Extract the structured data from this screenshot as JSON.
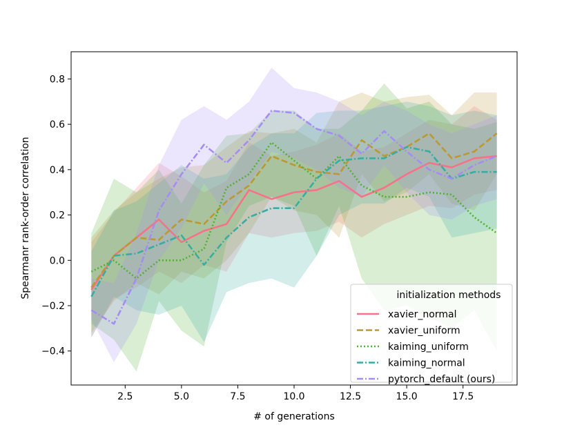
{
  "chart_data": {
    "type": "line",
    "title": "",
    "xlabel": "# of generations",
    "ylabel": "Spearmanr rank-order correlation",
    "xlim": [
      0.1,
      19.9
    ],
    "ylim": [
      -0.55,
      0.92
    ],
    "xticks": [
      2.5,
      5.0,
      7.5,
      10.0,
      12.5,
      15.0,
      17.5
    ],
    "xtick_labels": [
      "2.5",
      "5.0",
      "7.5",
      "10.0",
      "12.5",
      "15.0",
      "17.5"
    ],
    "yticks": [
      -0.4,
      -0.2,
      0.0,
      0.2,
      0.4,
      0.6,
      0.8
    ],
    "ytick_labels": [
      "−0.4",
      "−0.2",
      "0.0",
      "0.2",
      "0.4",
      "0.6",
      "0.8"
    ],
    "grid": false,
    "legend_title": "initialization methods",
    "legend_position": "lower-right",
    "x": [
      1,
      2,
      3,
      4,
      5,
      6,
      7,
      8,
      9,
      10,
      11,
      12,
      13,
      14,
      15,
      16,
      17,
      18,
      19
    ],
    "series": [
      {
        "name": "xavier_normal",
        "color": "#f77189",
        "dash": "solid",
        "values": [
          -0.13,
          0.02,
          0.1,
          0.18,
          0.08,
          0.13,
          0.16,
          0.31,
          0.27,
          0.3,
          0.31,
          0.35,
          0.28,
          0.32,
          0.38,
          0.43,
          0.41,
          0.45,
          0.46
        ],
        "lower": [
          -0.34,
          -0.17,
          -0.12,
          -0.05,
          -0.1,
          -0.02,
          -0.05,
          0.12,
          0.1,
          0.12,
          0.13,
          0.17,
          0.1,
          0.16,
          0.2,
          0.24,
          0.23,
          0.29,
          0.31
        ],
        "upper": [
          0.08,
          0.21,
          0.32,
          0.43,
          0.37,
          0.3,
          0.35,
          0.52,
          0.46,
          0.48,
          0.51,
          0.56,
          0.48,
          0.5,
          0.56,
          0.62,
          0.6,
          0.68,
          0.62
        ]
      },
      {
        "name": "xavier_uniform",
        "color": "#bb9832",
        "dash": "dashed",
        "values": [
          -0.12,
          0.02,
          0.1,
          0.09,
          0.18,
          0.16,
          0.26,
          0.33,
          0.46,
          0.42,
          0.39,
          0.38,
          0.53,
          0.46,
          0.5,
          0.56,
          0.45,
          0.48,
          0.56
        ],
        "lower": [
          -0.32,
          -0.18,
          -0.1,
          -0.15,
          -0.05,
          -0.08,
          0.0,
          0.12,
          0.28,
          0.22,
          0.2,
          0.1,
          0.38,
          0.26,
          0.3,
          0.38,
          0.25,
          0.22,
          0.38
        ],
        "upper": [
          0.1,
          0.22,
          0.3,
          0.36,
          0.41,
          0.42,
          0.5,
          0.57,
          0.56,
          0.58,
          0.52,
          0.7,
          0.74,
          0.7,
          0.72,
          0.73,
          0.64,
          0.74,
          0.74
        ]
      },
      {
        "name": "kaiming_uniform",
        "color": "#50b131",
        "dash": "dotted",
        "values": [
          -0.05,
          0.0,
          -0.08,
          0.0,
          0.0,
          0.05,
          0.32,
          0.38,
          0.52,
          0.44,
          0.36,
          0.46,
          0.33,
          0.28,
          0.28,
          0.3,
          0.29,
          0.19,
          0.12
        ],
        "lower": [
          -0.28,
          -0.35,
          -0.49,
          -0.18,
          -0.31,
          -0.38,
          0.08,
          0.24,
          0.28,
          0.24,
          0.02,
          0.24,
          -0.08,
          -0.22,
          -0.2,
          -0.25,
          -0.3,
          -0.22,
          -0.4
        ],
        "upper": [
          0.12,
          0.36,
          0.3,
          0.4,
          0.25,
          0.42,
          0.55,
          0.56,
          0.66,
          0.66,
          0.58,
          0.58,
          0.66,
          0.78,
          0.67,
          0.7,
          0.6,
          0.58,
          0.61
        ]
      },
      {
        "name": "kaiming_normal",
        "color": "#36ada4",
        "dash": "dashdot",
        "values": [
          -0.16,
          0.02,
          0.03,
          0.07,
          0.11,
          -0.02,
          0.1,
          0.19,
          0.23,
          0.23,
          0.36,
          0.44,
          0.45,
          0.45,
          0.5,
          0.48,
          0.36,
          0.39,
          0.39
        ],
        "lower": [
          -0.34,
          -0.16,
          -0.22,
          -0.24,
          -0.2,
          -0.36,
          -0.14,
          -0.1,
          -0.08,
          -0.12,
          0.02,
          0.2,
          0.25,
          0.25,
          0.32,
          0.28,
          0.1,
          0.12,
          0.14
        ],
        "upper": [
          0.04,
          0.22,
          0.26,
          0.34,
          0.42,
          0.36,
          0.38,
          0.5,
          0.56,
          0.56,
          0.65,
          0.66,
          0.66,
          0.68,
          0.7,
          0.68,
          0.64,
          0.66,
          0.64
        ]
      },
      {
        "name": "pytorch_default (ours)",
        "color": "#a48cf4",
        "dash": "dashdot",
        "values": [
          -0.22,
          -0.28,
          -0.08,
          0.22,
          0.38,
          0.51,
          0.43,
          0.53,
          0.66,
          0.65,
          0.58,
          0.55,
          0.47,
          0.57,
          0.48,
          0.4,
          0.36,
          0.42,
          0.46
        ],
        "lower": [
          -0.26,
          -0.45,
          -0.28,
          0.0,
          0.14,
          0.34,
          0.2,
          0.34,
          0.48,
          0.45,
          0.4,
          0.32,
          0.28,
          0.42,
          0.3,
          0.2,
          0.18,
          0.24,
          0.27
        ],
        "upper": [
          -0.08,
          -0.1,
          0.12,
          0.42,
          0.62,
          0.68,
          0.62,
          0.7,
          0.85,
          0.76,
          0.74,
          0.7,
          0.64,
          0.7,
          0.66,
          0.6,
          0.56,
          0.6,
          0.64
        ]
      }
    ]
  }
}
